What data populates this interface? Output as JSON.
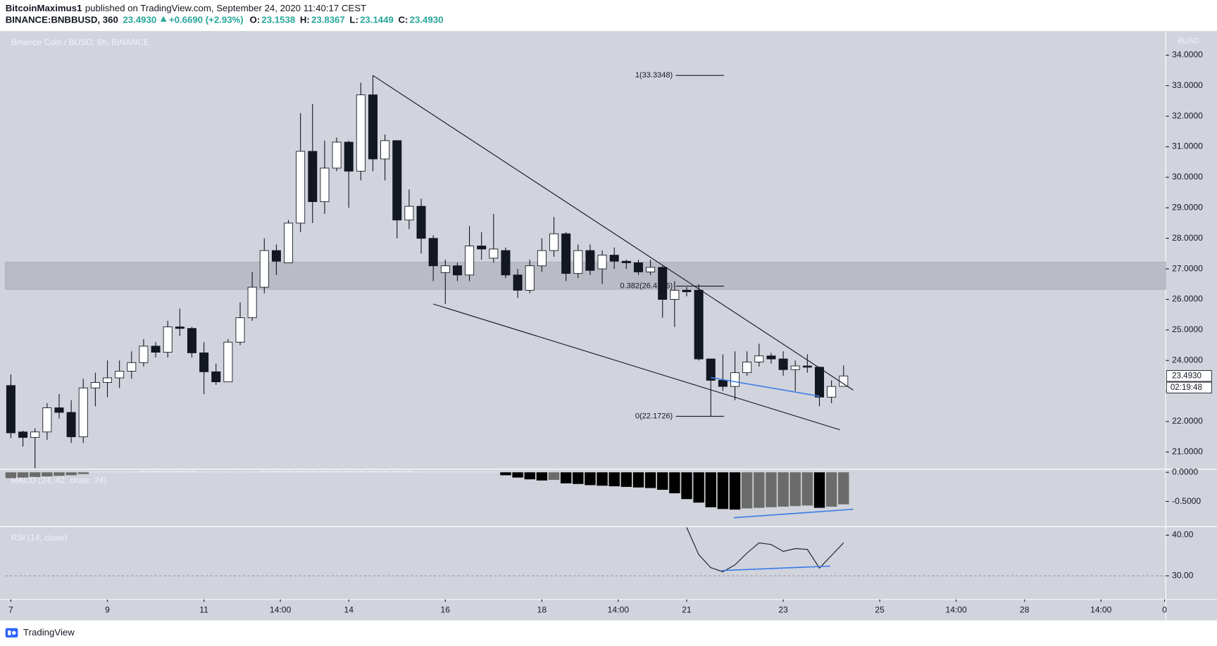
{
  "header": {
    "author": "BitcoinMaximus1",
    "published": "published on TradingView.com, September 24, 2020 11:40:17 CEST",
    "symbol": "BINANCE:BNBBUSD, 360",
    "last": "23.4930",
    "change": "+0.6690 (+2.93%)",
    "ohlc": [
      {
        "key": "O:",
        "value": "23.1538"
      },
      {
        "key": "H:",
        "value": "23.8367"
      },
      {
        "key": "L:",
        "value": "23.1449"
      },
      {
        "key": "C:",
        "value": "23.4930"
      }
    ]
  },
  "footer": "TradingView",
  "chart_data": [
    {
      "type": "candlestick",
      "title": "Binance Coin / BUSD, 6h, BINANCE",
      "unit": "BUSD",
      "xlim": [
        -0.45,
        95.7
      ],
      "ylim": [
        20.44,
        34.79
      ],
      "colors": {
        "up": "#ffffff",
        "down": "#131722",
        "edge": "#131722"
      },
      "yticks": [
        {
          "value": 21,
          "label": "21.0000"
        },
        {
          "value": 22,
          "label": "22.0000"
        },
        {
          "value": 23,
          "label": "23.0000"
        },
        {
          "value": 24,
          "label": "24.0000"
        },
        {
          "value": 25,
          "label": "25.0000"
        },
        {
          "value": 26,
          "label": "26.0000"
        },
        {
          "value": 27,
          "label": "27.0000"
        },
        {
          "value": 28,
          "label": "28.0000"
        },
        {
          "value": 29,
          "label": "29.0000"
        },
        {
          "value": 30,
          "label": "30.0000"
        },
        {
          "value": 31,
          "label": "31.0000"
        },
        {
          "value": 32,
          "label": "32.0000"
        },
        {
          "value": 33,
          "label": "33.0000"
        },
        {
          "value": 34,
          "label": "34.0000"
        }
      ],
      "open": [
        23.18,
        21.66,
        21.48,
        21.66,
        22.45,
        22.3,
        21.5,
        23.1,
        23.28,
        23.43,
        23.65,
        23.93,
        24.47,
        24.27,
        25.1,
        25.05,
        24.25,
        23.63,
        23.3,
        24.6,
        25.4,
        26.4,
        27.6,
        27.2,
        28.5,
        30.85,
        29.2,
        30.3,
        31.15,
        30.2,
        32.7,
        30.6,
        31.2,
        28.6,
        29.05,
        28.0,
        26.88,
        27.1,
        26.8,
        27.75,
        27.35,
        27.6,
        26.8,
        26.3,
        27.1,
        27.6,
        28.15,
        26.85,
        27.6,
        27.0,
        27.45,
        27.25,
        27.2,
        26.9,
        27.05,
        26.0,
        26.3,
        26.3,
        24.05,
        23.35,
        23.15,
        23.6,
        23.95,
        24.15,
        24.05,
        23.7,
        23.82,
        23.78,
        22.8,
        23.1538
      ],
      "high": [
        23.54,
        21.7,
        21.78,
        22.6,
        22.9,
        22.7,
        23.4,
        23.6,
        24.0,
        24.0,
        24.3,
        24.7,
        24.6,
        25.3,
        25.7,
        25.1,
        24.6,
        23.9,
        24.7,
        25.9,
        26.9,
        28.0,
        27.8,
        28.6,
        32.1,
        32.4,
        31.2,
        31.3,
        31.2,
        33.1,
        33.3348,
        31.4,
        31.2,
        29.6,
        29.3,
        28.1,
        27.3,
        27.2,
        28.4,
        28.2,
        28.8,
        27.7,
        27.0,
        27.3,
        28.0,
        28.7,
        28.2,
        27.8,
        27.8,
        27.6,
        27.7,
        27.3,
        27.3,
        27.3,
        27.1,
        26.6,
        26.4,
        26.5,
        24.05,
        24.2,
        24.3,
        24.3,
        24.55,
        24.25,
        24.3,
        24.0,
        24.2,
        23.8,
        23.35,
        23.8367
      ],
      "low": [
        21.46,
        21.18,
        20.47,
        21.4,
        22.1,
        21.3,
        21.3,
        22.5,
        22.8,
        23.1,
        23.4,
        23.8,
        24.1,
        24.1,
        24.8,
        24.1,
        22.9,
        23.2,
        23.3,
        24.5,
        25.3,
        26.2,
        26.8,
        27.2,
        28.2,
        28.5,
        28.8,
        30.2,
        29.0,
        29.9,
        30.2,
        29.9,
        28.0,
        28.3,
        27.5,
        26.6,
        25.85,
        26.6,
        26.6,
        27.3,
        27.2,
        26.7,
        26.05,
        26.2,
        26.9,
        27.4,
        26.6,
        26.7,
        26.8,
        26.5,
        27.0,
        27.0,
        26.8,
        26.8,
        25.4,
        25.1,
        26.1,
        24.0,
        22.1726,
        23.0,
        22.7,
        23.5,
        23.8,
        23.9,
        23.5,
        23.0,
        23.6,
        22.5,
        22.6,
        23.1449
      ],
      "close": [
        21.63,
        21.48,
        21.66,
        22.45,
        22.3,
        21.5,
        23.1,
        23.28,
        23.43,
        23.65,
        23.93,
        24.47,
        24.27,
        25.1,
        25.05,
        24.25,
        23.63,
        23.3,
        24.6,
        25.4,
        26.4,
        27.6,
        27.25,
        28.5,
        30.85,
        29.2,
        30.3,
        31.15,
        30.2,
        32.7,
        30.6,
        31.2,
        28.6,
        29.05,
        28.0,
        27.1,
        27.1,
        26.8,
        27.75,
        27.65,
        27.65,
        26.8,
        26.3,
        27.1,
        27.6,
        28.15,
        26.85,
        27.6,
        26.95,
        27.45,
        27.25,
        27.2,
        26.9,
        27.05,
        26.0,
        26.3,
        26.25,
        24.05,
        23.35,
        23.15,
        23.6,
        23.95,
        24.15,
        24.05,
        23.7,
        23.82,
        23.78,
        22.8,
        23.15,
        23.493
      ],
      "zone": {
        "range": [
          26.33,
          27.22
        ],
        "color": "#b9bcc5"
      },
      "fibonacci": {
        "x": [
          55.1,
          59.1
        ],
        "levels": [
          {
            "value": 33.3348,
            "label": "1(33.3348)"
          },
          {
            "value": 26.4366,
            "label": "0.382(26.4366)"
          },
          {
            "value": 22.1726,
            "label": "0(22.1726)"
          }
        ]
      },
      "trendlines": [
        {
          "from": [
            30,
            33.3348
          ],
          "to": [
            69.8,
            23.03
          ],
          "color": "#131722"
        },
        {
          "from": [
            35,
            25.85
          ],
          "to": [
            68.7,
            21.73
          ],
          "color": "#131722"
        },
        {
          "from": [
            58,
            23.44
          ],
          "to": [
            67,
            22.83
          ],
          "color": "#3f7ee8"
        }
      ],
      "last_price": {
        "value": 23.493,
        "label": "23.4930"
      },
      "countdown": "02:19:48"
    },
    {
      "type": "histogram",
      "title": "MACD (24, 42, close, 24)",
      "xlim": [
        -0.45,
        95.7
      ],
      "ylim": [
        -0.932,
        0.054
      ],
      "yticks": [
        {
          "value": 0,
          "label": "0.0000"
        },
        {
          "value": -0.5,
          "label": "-0.5000"
        }
      ],
      "colors": {
        "falling": "#000000",
        "rising": "#6b6b6b",
        "positive": "#eef0f5"
      },
      "values": [
        -0.1,
        -0.09,
        -0.08,
        -0.07,
        -0.06,
        -0.05,
        -0.03,
        0.01,
        0.01,
        0.01,
        0.01,
        0.02,
        0.02,
        0.02,
        0.02,
        0.02,
        0.01,
        0.01,
        0.01,
        0.01,
        0.01,
        0.02,
        0.02,
        0.02,
        0.02,
        0.02,
        0.02,
        0.02,
        0.02,
        0.02,
        0.02,
        0.02,
        0.02,
        0.02,
        0.01,
        0.01,
        0.01,
        0.01,
        0.01,
        0.01,
        0.01,
        -0.05,
        -0.09,
        -0.12,
        -0.14,
        -0.13,
        -0.19,
        -0.2,
        -0.22,
        -0.23,
        -0.24,
        -0.25,
        -0.26,
        -0.27,
        -0.3,
        -0.36,
        -0.46,
        -0.52,
        -0.6,
        -0.63,
        -0.64,
        -0.62,
        -0.61,
        -0.6,
        -0.59,
        -0.58,
        -0.57,
        -0.61,
        -0.59,
        -0.55
      ],
      "trendlines": [
        {
          "from": [
            59.9,
            -0.78
          ],
          "to": [
            69.8,
            -0.635
          ],
          "color": "#3f7ee8"
        }
      ]
    },
    {
      "type": "line",
      "title": "RSI (14, close)",
      "xlim": [
        -0.45,
        95.7
      ],
      "ylim": [
        24.2,
        42.1
      ],
      "color": "#131722",
      "band": 30,
      "yticks": [
        {
          "value": 30,
          "label": "30.00"
        },
        {
          "value": 40,
          "label": "40.00"
        }
      ],
      "values": [
        null,
        null,
        null,
        null,
        null,
        null,
        null,
        null,
        null,
        null,
        null,
        null,
        null,
        null,
        null,
        null,
        null,
        null,
        null,
        null,
        null,
        null,
        null,
        null,
        null,
        null,
        null,
        null,
        null,
        null,
        null,
        null,
        null,
        null,
        null,
        null,
        null,
        null,
        null,
        null,
        null,
        null,
        null,
        null,
        null,
        null,
        null,
        null,
        null,
        null,
        null,
        null,
        null,
        null,
        null,
        null,
        41.9,
        35.2,
        32.0,
        31.0,
        32.7,
        35.6,
        38.1,
        37.7,
        36.0,
        36.7,
        36.5,
        31.9,
        35.0,
        38.1
      ],
      "trendlines": [
        {
          "from": [
            58.9,
            31.3
          ],
          "to": [
            67.9,
            32.4
          ],
          "color": "#3f7ee8"
        }
      ],
      "xticks": [
        {
          "value": 0,
          "label": "7"
        },
        {
          "value": 8,
          "label": "9"
        },
        {
          "value": 16,
          "label": "11"
        },
        {
          "value": 22.33,
          "label": "14:00"
        },
        {
          "value": 28,
          "label": "14"
        },
        {
          "value": 36,
          "label": "16"
        },
        {
          "value": 44,
          "label": "18"
        },
        {
          "value": 50.33,
          "label": "14:00"
        },
        {
          "value": 56,
          "label": "21"
        },
        {
          "value": 64,
          "label": "23"
        },
        {
          "value": 72,
          "label": "25"
        },
        {
          "value": 78.33,
          "label": "14:00"
        },
        {
          "value": 84,
          "label": "28"
        },
        {
          "value": 90.33,
          "label": "14:00"
        },
        {
          "value": 95.6,
          "label": "0"
        }
      ]
    }
  ]
}
